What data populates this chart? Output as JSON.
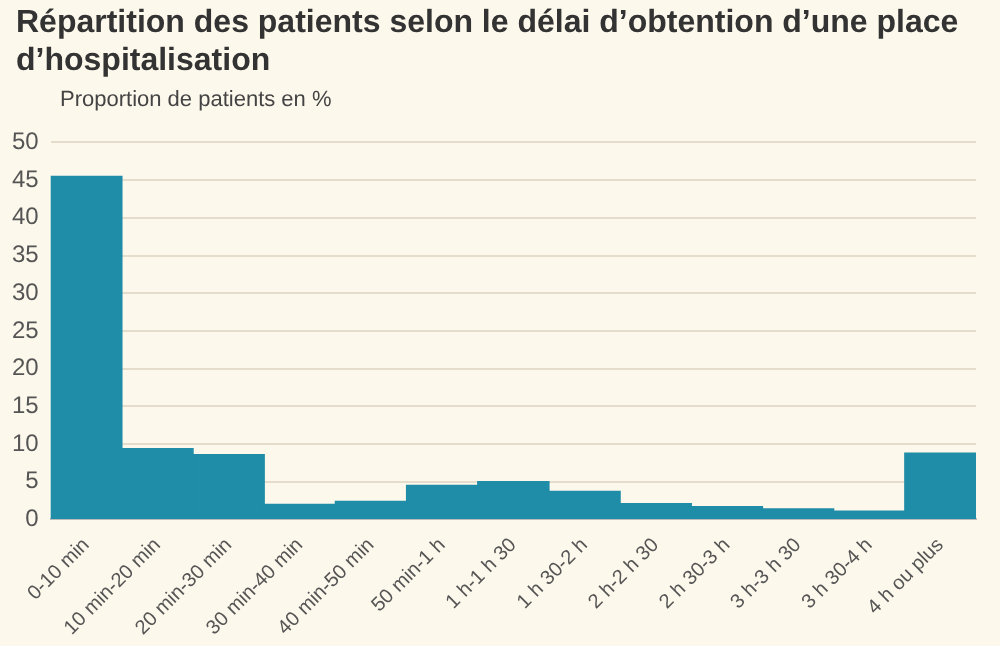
{
  "chart_data": {
    "type": "bar",
    "title": "Répartition des patients selon le délai d’obtention d’une place d’hospitalisation",
    "ylabel": "Proportion de patients en %",
    "categories": [
      "0-10 min",
      "10 min-20 min",
      "20 min-30 min",
      "30 min-40 min",
      "40 min-50 min",
      "50 min-1 h",
      "1 h-1 h 30",
      "1 h 30-2 h",
      "2 h-2 h 30",
      "2 h 30-3 h",
      "3 h-3 h 30",
      "3 h 30-4 h",
      "4 h ou plus"
    ],
    "values": [
      45.5,
      9.4,
      8.6,
      2.0,
      2.4,
      4.5,
      5.0,
      3.7,
      2.1,
      1.7,
      1.4,
      1.1,
      8.8
    ],
    "color": "#1f8ca8",
    "ylim": [
      0,
      50
    ],
    "yticks": [
      0,
      5,
      10,
      15,
      20,
      25,
      30,
      35,
      40,
      45,
      50
    ],
    "grid": "y",
    "legend": false
  }
}
